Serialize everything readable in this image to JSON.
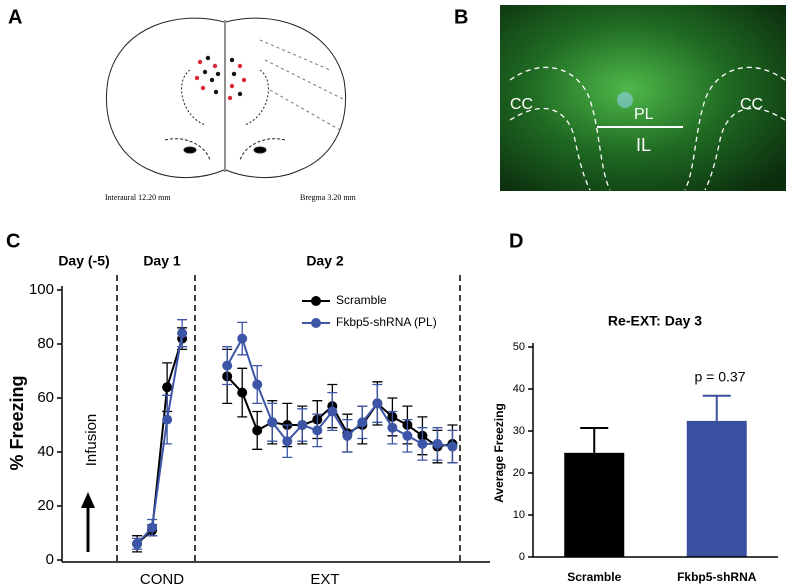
{
  "panel_labels": [
    "A",
    "B",
    "C",
    "D"
  ],
  "panel_a": {
    "left_caption": "Interaural 12.20 mm",
    "right_caption": "Bregma 3.20 mm"
  },
  "panel_b": {
    "labels": [
      "CC",
      "PL",
      "IL",
      "CC"
    ]
  },
  "chart_data": [
    {
      "type": "line",
      "y_label": "% Freezing",
      "annotations": [
        "Day (-5)",
        "Day 1",
        "Day 2",
        "Infusion"
      ],
      "x_groups": [
        "COND",
        "EXT"
      ],
      "x": [
        1,
        2,
        3,
        4,
        5,
        7,
        8,
        9,
        10,
        11,
        12,
        13,
        14,
        15,
        16,
        17,
        18,
        19,
        20,
        21,
        22
      ],
      "xlim": [
        -4,
        24.5
      ],
      "ylim": [
        0,
        100
      ],
      "yticks": [
        0,
        20,
        40,
        60,
        80,
        100
      ],
      "series": [
        {
          "name": "Scramble",
          "color": "#000000",
          "values": [
            6,
            11,
            64,
            82,
            null,
            68,
            62,
            48,
            51,
            50,
            50,
            52,
            57,
            47,
            50,
            58,
            53,
            50,
            46,
            42,
            43
          ],
          "errors": [
            3,
            2,
            9,
            4,
            null,
            10,
            9,
            7,
            8,
            8,
            7,
            7,
            8,
            7,
            7,
            8,
            7,
            7,
            7,
            6,
            7
          ]
        },
        {
          "name": "Fkbp5-shRNA (PL)",
          "color": "#3d55a6",
          "values": [
            6,
            12,
            52,
            84,
            null,
            72,
            82,
            65,
            51,
            44,
            50,
            48,
            55,
            46,
            51,
            58,
            49,
            46,
            43,
            43,
            42
          ],
          "errors": [
            2,
            3,
            9,
            5,
            null,
            7,
            6,
            7,
            7,
            6,
            6,
            6,
            7,
            6,
            6,
            7,
            6,
            6,
            6,
            6,
            6
          ]
        }
      ]
    },
    {
      "type": "bar",
      "title": "Re-EXT: Day 3",
      "y_label": "Average Freezing",
      "categories": [
        "Scramble",
        "Fkbp5-shRNA"
      ],
      "values": [
        24.8,
        32.4
      ],
      "errors": [
        5.9,
        6
      ],
      "colors": [
        "#000000",
        "#3a4fa0"
      ],
      "annotation": "p = 0.37",
      "ylim": [
        0,
        50
      ],
      "yticks": [
        0,
        10,
        20,
        30,
        40,
        50
      ]
    }
  ]
}
